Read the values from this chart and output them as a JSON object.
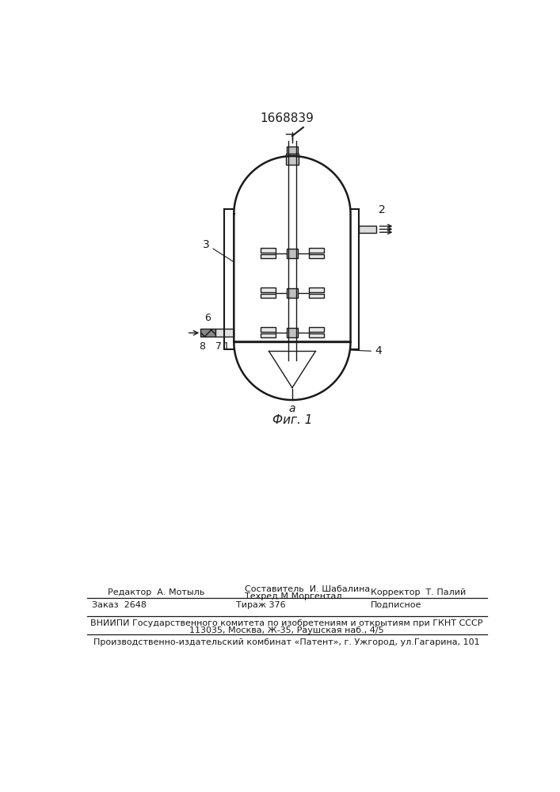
{
  "patent_number": "1668839",
  "fig_label": "Фиг. 1",
  "bg_color": "#ffffff",
  "line_color": "#1a1a1a",
  "editor_line": "Редактор  А. Мотыль",
  "composer_line": "Составитель  И. Шабалина",
  "techred_line": "Техред М.Моргентал",
  "corrector_line": "Корректор  Т. Палий",
  "order_line": "Заказ  2648",
  "tirazh_line": "Тираж 376",
  "podpisnoe_line": "Подписное",
  "vniipи_line": "ВНИИПИ Государственного комитета по изобретениям и открытиям при ГКНТ СССР",
  "address_line": "113035, Москва, Ж-35, Раушская наб., 4/5",
  "patent_line": "Производственно-издательский комбинат «Патент», г. Ужгород, ул.Гагарина, 101"
}
